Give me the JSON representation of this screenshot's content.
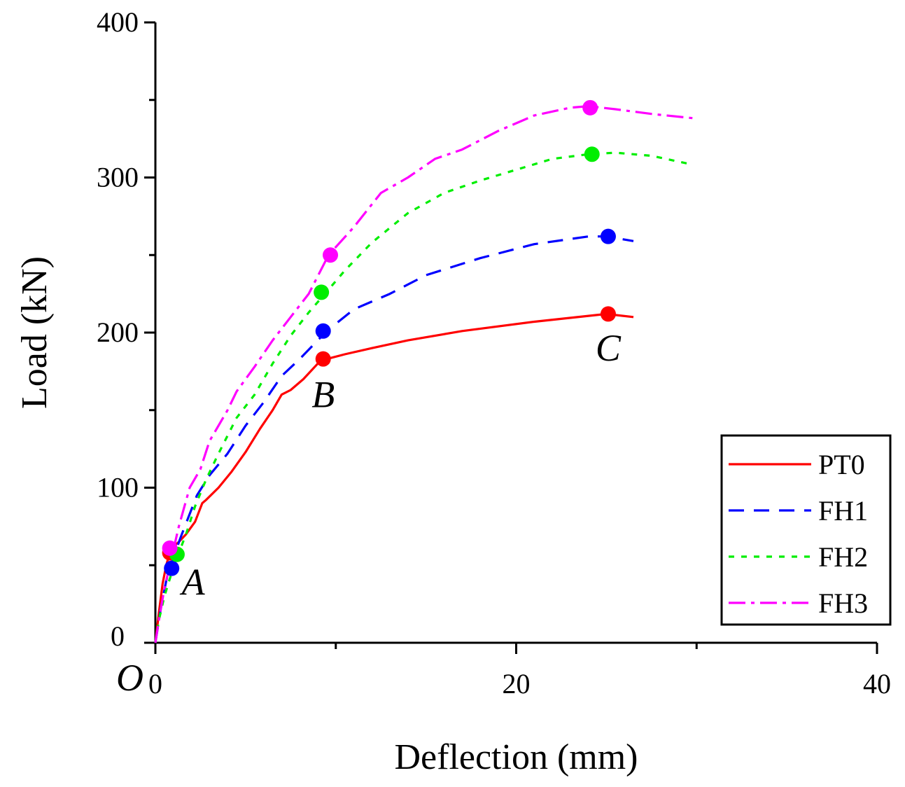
{
  "chart_data": {
    "type": "line",
    "title": "",
    "xlabel": "Deflection (mm)",
    "ylabel": "Load (kN)",
    "xlim": [
      0,
      40
    ],
    "ylim": [
      0,
      400
    ],
    "x_ticks": [
      0,
      20,
      40
    ],
    "x_tick_labels": [
      "0",
      "20",
      "40"
    ],
    "y_ticks": [
      0,
      100,
      200,
      300,
      400
    ],
    "y_tick_labels": [
      "0",
      "100",
      "200",
      "300",
      "400"
    ],
    "x_minor_ticks": [
      10,
      30
    ],
    "y_minor_ticks": [
      50,
      150,
      250,
      350
    ],
    "grid": false,
    "legend_position": "bottom-right",
    "origin_label": "O",
    "series": [
      {
        "name": "PT0",
        "color": "#ff0000",
        "dash": "solid",
        "x": [
          0,
          0.2,
          0.4,
          0.6,
          0.8,
          1.0,
          1.3,
          1.7,
          2.2,
          2.6,
          2.8,
          3.5,
          4.2,
          5.0,
          5.8,
          6.5,
          7.0,
          7.5,
          8.2,
          9.0,
          9.5,
          10.5,
          12,
          14,
          17,
          21,
          25,
          26.5
        ],
        "y": [
          0,
          20,
          38,
          50,
          58,
          62,
          65,
          70,
          78,
          90,
          92,
          100,
          110,
          123,
          138,
          150,
          160,
          163,
          170,
          180,
          183,
          186,
          190,
          195,
          201,
          207,
          212,
          210
        ]
      },
      {
        "name": "FH1",
        "color": "#0000ff",
        "dash": "22 14",
        "x": [
          0,
          0.3,
          0.6,
          1.0,
          1.4,
          1.8,
          2.3,
          3.0,
          4.0,
          5.0,
          6.0,
          7.0,
          8.0,
          9.0,
          9.5,
          11.0,
          13.0,
          15.0,
          18.0,
          21.0,
          24.0,
          25.0,
          26.5
        ],
        "y": [
          0,
          22,
          40,
          55,
          68,
          80,
          95,
          108,
          122,
          140,
          155,
          172,
          183,
          195,
          201,
          215,
          225,
          237,
          248,
          257,
          262,
          262,
          259
        ]
      },
      {
        "name": "FH2",
        "color": "#00ee00",
        "dash": "8 10",
        "x": [
          0,
          0.2,
          0.5,
          0.9,
          1.3,
          1.7,
          2.2,
          2.8,
          3.5,
          4.5,
          5.5,
          6.5,
          7.5,
          8.5,
          9.4,
          10.5,
          12.0,
          14.0,
          16.0,
          18.0,
          20.0,
          22.0,
          24.0,
          25.5,
          27.5,
          29.5
        ],
        "y": [
          0,
          15,
          30,
          45,
          58,
          70,
          88,
          105,
          122,
          145,
          160,
          180,
          198,
          213,
          225,
          240,
          258,
          277,
          290,
          298,
          305,
          312,
          315,
          316,
          314,
          309
        ]
      },
      {
        "name": "FH3",
        "color": "#ff00ff",
        "dash": "24 8 5 8",
        "x": [
          0,
          0.2,
          0.5,
          0.9,
          1.3,
          1.9,
          2.5,
          3.0,
          4.0,
          4.5,
          5.5,
          6.5,
          7.5,
          8.5,
          9.6,
          11.0,
          12.5,
          14.0,
          15.5,
          17.0,
          19.0,
          21.0,
          23.0,
          24.0,
          25.5,
          27.5,
          30.0
        ],
        "y": [
          0,
          15,
          35,
          55,
          75,
          100,
          112,
          130,
          150,
          162,
          178,
          195,
          210,
          225,
          250,
          268,
          290,
          300,
          312,
          318,
          330,
          340,
          345,
          346,
          344,
          341,
          338
        ]
      }
    ],
    "markers": [
      {
        "series": "PT0",
        "x": 0.8,
        "y": 58
      },
      {
        "series": "PT0",
        "x": 9.3,
        "y": 183
      },
      {
        "series": "PT0",
        "x": 25.1,
        "y": 212
      },
      {
        "series": "FH1",
        "x": 0.9,
        "y": 48
      },
      {
        "series": "FH1",
        "x": 9.3,
        "y": 201
      },
      {
        "series": "FH1",
        "x": 25.1,
        "y": 262
      },
      {
        "series": "FH2",
        "x": 1.2,
        "y": 57
      },
      {
        "series": "FH2",
        "x": 9.2,
        "y": 226
      },
      {
        "series": "FH2",
        "x": 24.2,
        "y": 315
      },
      {
        "series": "FH3",
        "x": 0.8,
        "y": 61
      },
      {
        "series": "FH3",
        "x": 9.7,
        "y": 250
      },
      {
        "series": "FH3",
        "x": 24.1,
        "y": 345
      }
    ],
    "annotations": [
      {
        "text": "A",
        "x": 2.1,
        "y": 31
      },
      {
        "text": "B",
        "x": 9.3,
        "y": 152
      },
      {
        "text": "C",
        "x": 25.1,
        "y": 182
      }
    ]
  }
}
